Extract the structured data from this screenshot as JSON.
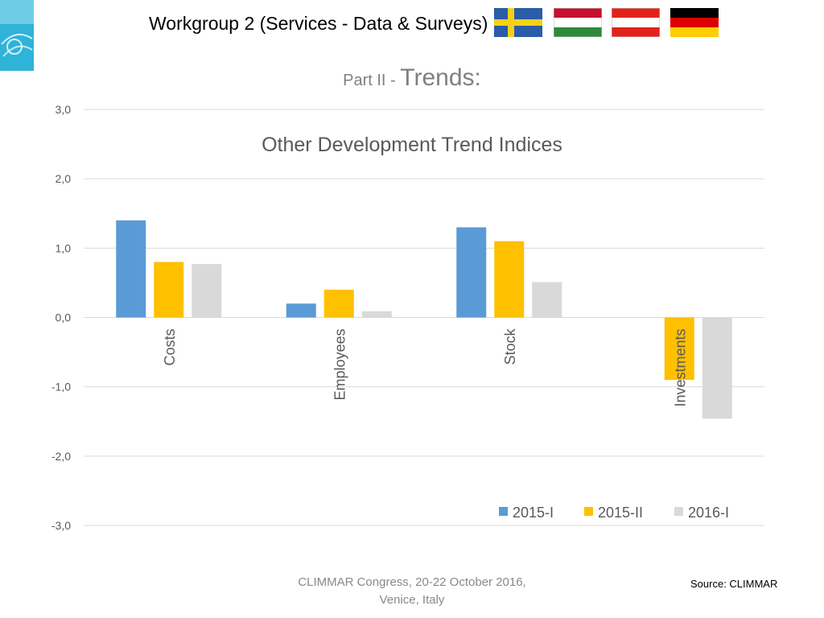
{
  "header": {
    "title": "Workgroup 2 (Services - Data & Surveys)",
    "flags": [
      "sweden-flag",
      "hungary-flag",
      "austria-flag",
      "germany-flag"
    ]
  },
  "subtitle": {
    "prefix": "Part II - ",
    "main": "Trends:"
  },
  "chart_data": {
    "type": "bar",
    "title": "Other Development Trend Indices",
    "xlabel": "",
    "ylabel": "",
    "categories": [
      "Costs",
      "Employees",
      "Stock",
      "Investments"
    ],
    "series": [
      {
        "name": "2015-I",
        "color": "#5b9bd5",
        "values": [
          1.4,
          0.2,
          1.3,
          0.0
        ]
      },
      {
        "name": "2015-II",
        "color": "#ffc000",
        "values": [
          0.8,
          0.4,
          1.1,
          -0.9
        ]
      },
      {
        "name": "2016-I",
        "color": "#d9d9d9",
        "values": [
          0.77,
          0.09,
          0.51,
          -1.46
        ]
      }
    ],
    "ylim": [
      -3,
      3
    ],
    "yticks": [
      3,
      2,
      1,
      0,
      -1,
      -2,
      -3
    ],
    "ytick_labels": [
      "3,0",
      "2,0",
      "1,0",
      "0,0",
      "-1,0",
      "-2,0",
      "-3,0"
    ],
    "grid": true,
    "legend_position": "bottom-right",
    "label_color": "#595959",
    "grid_color": "#d9d9d9"
  },
  "footer": {
    "line1": "CLIMMAR Congress, 20-22 October 2016,",
    "line2": "Venice, Italy",
    "source": "Source: CLIMMAR"
  }
}
